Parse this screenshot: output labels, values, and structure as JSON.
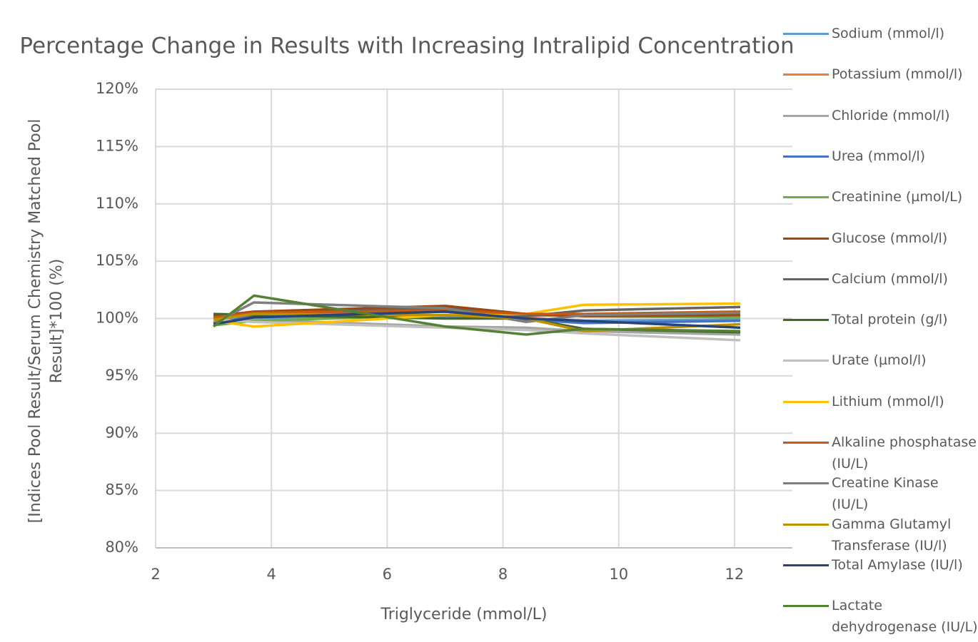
{
  "chart_data": {
    "type": "line",
    "title": "Percentage Change in Results with Increasing Intralipid Concentration",
    "x_label": "Triglyceride  (mmol/L)",
    "y_label": "[Indices Pool Result/Serum Chemistry Matched Pool Result]*100 (%)",
    "x": [
      3.0,
      3.7,
      7.0,
      8.4,
      9.4,
      12.1
    ],
    "xlim": [
      2,
      13
    ],
    "xticks": [
      2,
      4,
      6,
      8,
      10,
      12
    ],
    "ylim": [
      80,
      120
    ],
    "yticks": [
      {
        "value": 80,
        "label": "80%"
      },
      {
        "value": 85,
        "label": "85%"
      },
      {
        "value": 90,
        "label": "90%"
      },
      {
        "value": 95,
        "label": "95%"
      },
      {
        "value": 100,
        "label": "100%"
      },
      {
        "value": 105,
        "label": "105%"
      },
      {
        "value": 110,
        "label": "110%"
      },
      {
        "value": 115,
        "label": "115%"
      },
      {
        "value": 120,
        "label": "120%"
      }
    ],
    "grid": true,
    "legend": "right",
    "series": [
      {
        "name": "Sodium (mmol/l)",
        "color": "#5b9bd5",
        "values": [
          99.8,
          100.0,
          100.2,
          100.0,
          99.8,
          99.9
        ]
      },
      {
        "name": "Potassium (mmol/l)",
        "color": "#ed7d31",
        "values": [
          100.0,
          100.3,
          100.8,
          100.2,
          100.3,
          100.4
        ]
      },
      {
        "name": "Chloride (mmol/l)",
        "color": "#a5a5a5",
        "values": [
          99.8,
          99.9,
          99.3,
          99.2,
          98.9,
          98.6
        ]
      },
      {
        "name": "Urea (mmol/l)",
        "color": "#4472c4",
        "values": [
          99.6,
          100.2,
          100.6,
          99.9,
          99.6,
          99.8
        ]
      },
      {
        "name": "Creatinine (µmol/L)",
        "color": "#70ad47",
        "values": [
          99.4,
          99.8,
          100.3,
          100.4,
          100.2,
          100.1
        ]
      },
      {
        "name": "Glucose (mmol/l)",
        "color": "#9e480e",
        "values": [
          100.2,
          100.6,
          101.1,
          100.4,
          100.2,
          100.3
        ]
      },
      {
        "name": "Calcium (mmol/l)",
        "color": "#636363",
        "values": [
          100.1,
          100.4,
          100.9,
          100.2,
          100.7,
          101.0
        ]
      },
      {
        "name": "Total protein (g/l)",
        "color": "#43682b",
        "values": [
          100.4,
          100.3,
          100.0,
          100.0,
          99.1,
          98.8
        ]
      },
      {
        "name": "Urate (µmol/l)",
        "color": "#c0c0c0",
        "values": [
          99.9,
          99.7,
          99.2,
          99.0,
          98.7,
          98.1
        ]
      },
      {
        "name": "Lithium (mmol/l)",
        "color": "#ffc000",
        "values": [
          99.8,
          99.3,
          100.3,
          100.4,
          101.2,
          101.3
        ]
      },
      {
        "name": "Alkaline phosphatase (IU/L)",
        "color": "#c55a11",
        "values": [
          100.1,
          100.5,
          100.7,
          100.4,
          100.4,
          100.6
        ]
      },
      {
        "name": "Creatine Kinase (IU/L)",
        "color": "#7f7f7f",
        "values": [
          99.6,
          101.4,
          100.9,
          99.7,
          100.3,
          100.5
        ]
      },
      {
        "name": "Gamma Glutamyl Transferase (IU/l)",
        "color": "#bf9000",
        "values": [
          99.9,
          100.4,
          100.3,
          100.0,
          98.9,
          99.5
        ]
      },
      {
        "name": "Total Amylase (IU/l)",
        "color": "#264478",
        "values": [
          99.5,
          100.1,
          100.6,
          100.0,
          99.8,
          99.2
        ]
      },
      {
        "name": "Lactate dehydrogenase (IU/L)",
        "color": "#548235",
        "values": [
          99.3,
          102.0,
          99.3,
          98.6,
          99.1,
          98.9
        ]
      }
    ]
  }
}
